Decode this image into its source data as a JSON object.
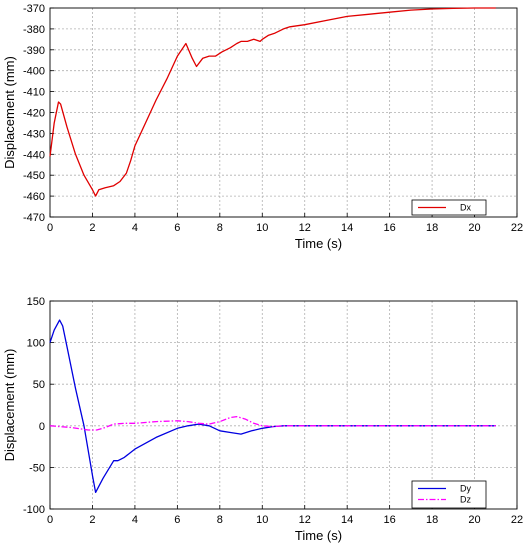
{
  "chart_data": [
    {
      "type": "line",
      "xlabel": "Time (s)",
      "ylabel": "Displacement (mm)",
      "xlim": [
        0,
        22
      ],
      "ylim": [
        -470,
        -370
      ],
      "xticks": [
        "0",
        "2",
        "4",
        "6",
        "8",
        "10",
        "12",
        "14",
        "16",
        "18",
        "20",
        "22"
      ],
      "yticks": [
        "-370",
        "-380",
        "-390",
        "-400",
        "-410",
        "-420",
        "-430",
        "-440",
        "-450",
        "-460",
        "-470"
      ],
      "grid": true,
      "legend_position": "bottom-right",
      "series": [
        {
          "name": "Dx",
          "color": "#e00000",
          "style": "solid",
          "x": [
            0,
            0.2,
            0.4,
            0.5,
            0.8,
            1.2,
            1.6,
            2.0,
            2.15,
            2.3,
            2.6,
            3.0,
            3.3,
            3.6,
            3.8,
            4.0,
            4.5,
            5.0,
            5.5,
            6.0,
            6.4,
            6.7,
            6.9,
            7.2,
            7.5,
            7.8,
            8.1,
            8.5,
            8.8,
            9.0,
            9.3,
            9.6,
            9.9,
            10.0,
            10.3,
            10.6,
            11.0,
            11.3,
            12,
            13,
            14,
            15,
            16,
            17,
            18,
            19,
            20,
            21
          ],
          "y": [
            -441,
            -425,
            -415,
            -416,
            -427,
            -440,
            -450,
            -457,
            -460,
            -457,
            -456,
            -455,
            -453,
            -449,
            -443,
            -436,
            -425,
            -414,
            -404,
            -393,
            -387,
            -394,
            -398,
            -394,
            -393,
            -393,
            -391,
            -389,
            -387,
            -386,
            -386,
            -385,
            -386,
            -385,
            -383,
            -382,
            -380,
            -379,
            -378,
            -376,
            -374,
            -373,
            -372,
            -371,
            -370.5,
            -370.2,
            -370,
            -370
          ]
        }
      ]
    },
    {
      "type": "line",
      "xlabel": "Time (s)",
      "ylabel": "Displacement (mm)",
      "xlim": [
        0,
        22
      ],
      "ylim": [
        -100,
        150
      ],
      "xticks": [
        "0",
        "2",
        "4",
        "6",
        "8",
        "10",
        "12",
        "14",
        "16",
        "18",
        "20",
        "22"
      ],
      "yticks": [
        "150",
        "100",
        "50",
        "0",
        "-50",
        "-100"
      ],
      "grid": true,
      "legend_position": "bottom-right",
      "series": [
        {
          "name": "Dy",
          "color": "#0000e0",
          "style": "solid",
          "x": [
            0,
            0.2,
            0.45,
            0.6,
            0.8,
            1.2,
            1.6,
            2.0,
            2.15,
            2.5,
            3.0,
            3.2,
            3.5,
            4.0,
            5.0,
            6.0,
            6.5,
            7.0,
            7.5,
            8.0,
            8.5,
            9.0,
            9.5,
            10.0,
            10.5,
            11.0,
            11.5,
            12,
            14,
            16,
            18,
            20,
            21
          ],
          "y": [
            100,
            115,
            127,
            120,
            95,
            45,
            0,
            -60,
            -80,
            -63,
            -42,
            -42,
            -38,
            -28,
            -14,
            -3,
            0,
            2,
            0,
            -6,
            -8,
            -10,
            -6,
            -3,
            -1,
            0,
            0,
            0,
            0,
            0,
            0,
            0,
            0
          ]
        },
        {
          "name": "Dz",
          "color": "#ff00ff",
          "style": "dash-dot",
          "x": [
            0,
            1.0,
            1.8,
            2.2,
            2.6,
            3.0,
            3.5,
            4.0,
            5.0,
            6.0,
            6.5,
            7.0,
            7.5,
            8.0,
            8.5,
            8.8,
            9.2,
            9.6,
            10.0,
            10.5,
            11,
            12,
            14,
            16,
            18,
            20,
            21
          ],
          "y": [
            0,
            -2,
            -5,
            -5,
            -2,
            2,
            3,
            3,
            5,
            6,
            5,
            3,
            2,
            5,
            10,
            11,
            8,
            3,
            0,
            -1,
            0,
            0,
            0,
            0,
            0,
            0,
            0
          ]
        }
      ]
    }
  ]
}
